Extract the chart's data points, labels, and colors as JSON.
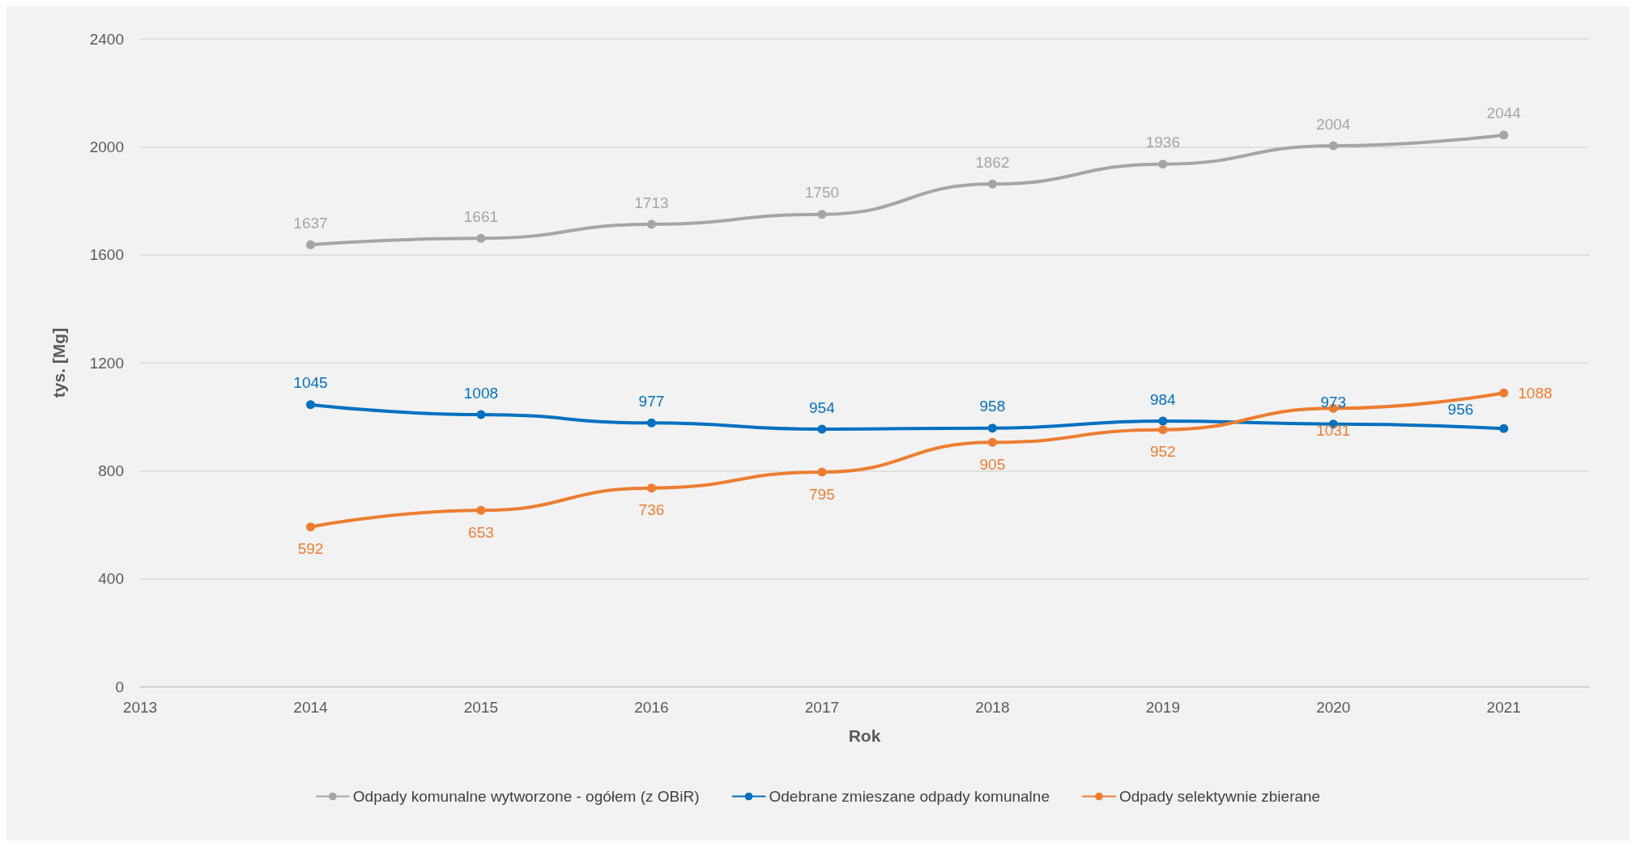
{
  "chart_data": {
    "type": "line",
    "xlabel": "Rok",
    "ylabel": "tys. [Mg]",
    "x": [
      2014,
      2015,
      2016,
      2017,
      2018,
      2019,
      2020,
      2021
    ],
    "series": [
      {
        "name": "Odpady komunalne wytworzone - ogółem (z OBiR)",
        "color": "#a5a5a5",
        "values": [
          1637,
          1661,
          1713,
          1750,
          1862,
          1936,
          2004,
          2044
        ]
      },
      {
        "name": "Odebrane zmieszane odpady komunalne",
        "color": "#0070c0",
        "values": [
          1045,
          1008,
          977,
          954,
          958,
          984,
          973,
          956
        ]
      },
      {
        "name": "Odpady selektywnie zbierane",
        "color": "#ed7d31",
        "values": [
          592,
          653,
          736,
          795,
          905,
          952,
          1031,
          1088
        ]
      }
    ],
    "xlim": [
      2013,
      2021.5
    ],
    "xticks": [
      2013,
      2014,
      2015,
      2016,
      2017,
      2018,
      2019,
      2020,
      2021
    ],
    "ylim": [
      0,
      2400
    ],
    "yticks": [
      0,
      400,
      800,
      1200,
      1600,
      2000,
      2400
    ],
    "grid": "y",
    "legend": "bottom",
    "marker": "circle",
    "line_style": "solid",
    "data_labels": true
  }
}
